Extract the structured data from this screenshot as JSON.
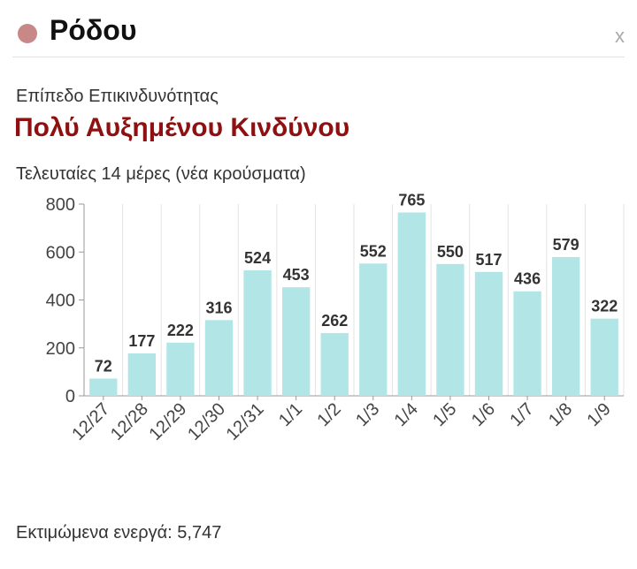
{
  "header": {
    "status_color": "#c98888",
    "title": "Ρόδου",
    "close_label": "x"
  },
  "risk": {
    "label": "Επίπεδο Επικινδυνότητας",
    "value": "Πολύ Αυξημένου Κινδύνου",
    "color": "#8f1010"
  },
  "chart_caption": "Τελευταίες 14 μέρες (νέα κρούσματα)",
  "chart_data": {
    "type": "bar",
    "categories": [
      "12/27",
      "12/28",
      "12/29",
      "12/30",
      "12/31",
      "1/1",
      "1/2",
      "1/3",
      "1/4",
      "1/5",
      "1/6",
      "1/7",
      "1/8",
      "1/9"
    ],
    "values": [
      72,
      177,
      222,
      316,
      524,
      453,
      262,
      552,
      765,
      550,
      517,
      436,
      579,
      322
    ],
    "ylim": [
      0,
      800
    ],
    "yticks": [
      0,
      200,
      400,
      600,
      800
    ],
    "grid": "vertical",
    "bar_color": "#b2e6e6",
    "data_labels": true
  },
  "footer": "Εκτιμώμενα ενεργά: 5,747"
}
